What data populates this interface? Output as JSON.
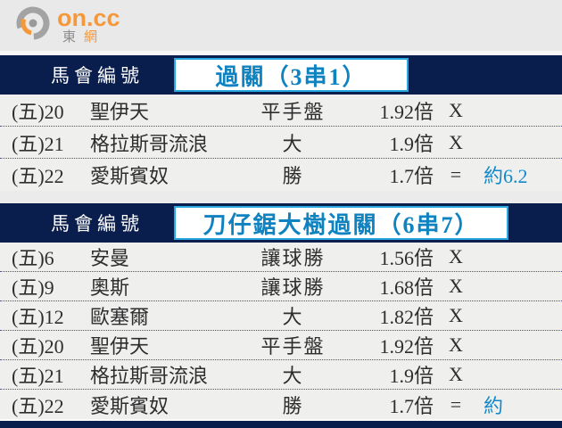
{
  "logo": {
    "brand": "on.cc",
    "subtitle_left": "東",
    "subtitle_right": "網"
  },
  "colors": {
    "navy": "#0a1e4e",
    "box_border": "#29a8df",
    "title_blue": "#0f82c0",
    "extra_blue": "#1389cb",
    "dotted_line": "#4053a3",
    "background": "#ebebeb",
    "text": "#2e2e2e",
    "logo_orange": "#f5983a",
    "logo_gray": "#a0a0a0"
  },
  "tables": [
    {
      "header_label": "馬會編號",
      "title": "過關（3串1）",
      "rows": [
        {
          "no": "(五)20",
          "name": "聖伊天",
          "bet": "平手盤",
          "odds": "1.92倍",
          "mark": "X",
          "extra": ""
        },
        {
          "no": "(五)21",
          "name": "格拉斯哥流浪",
          "bet": "大",
          "odds": "1.9倍",
          "mark": "X",
          "extra": ""
        },
        {
          "no": "(五)22",
          "name": "愛斯賓奴",
          "bet": "勝",
          "odds": "1.7倍",
          "mark": "=",
          "extra": "約6.2"
        }
      ]
    },
    {
      "header_label": "馬會編號",
      "title": "刀仔鋸大樹過關（6串7）",
      "rows": [
        {
          "no": "(五)6",
          "name": "安曼",
          "bet": "讓球勝",
          "odds": "1.56倍",
          "mark": "X",
          "extra": ""
        },
        {
          "no": "(五)9",
          "name": "奧斯",
          "bet": "讓球勝",
          "odds": "1.68倍",
          "mark": "X",
          "extra": ""
        },
        {
          "no": "(五)12",
          "name": "歐塞爾",
          "bet": "大",
          "odds": "1.82倍",
          "mark": "X",
          "extra": ""
        },
        {
          "no": "(五)20",
          "name": "聖伊天",
          "bet": "平手盤",
          "odds": "1.92倍",
          "mark": "X",
          "extra": ""
        },
        {
          "no": "(五)21",
          "name": "格拉斯哥流浪",
          "bet": "大",
          "odds": "1.9倍",
          "mark": "X",
          "extra": ""
        },
        {
          "no": "(五)22",
          "name": "愛斯賓奴",
          "bet": "勝",
          "odds": "1.7倍",
          "mark": "=",
          "extra": "約"
        }
      ]
    }
  ]
}
